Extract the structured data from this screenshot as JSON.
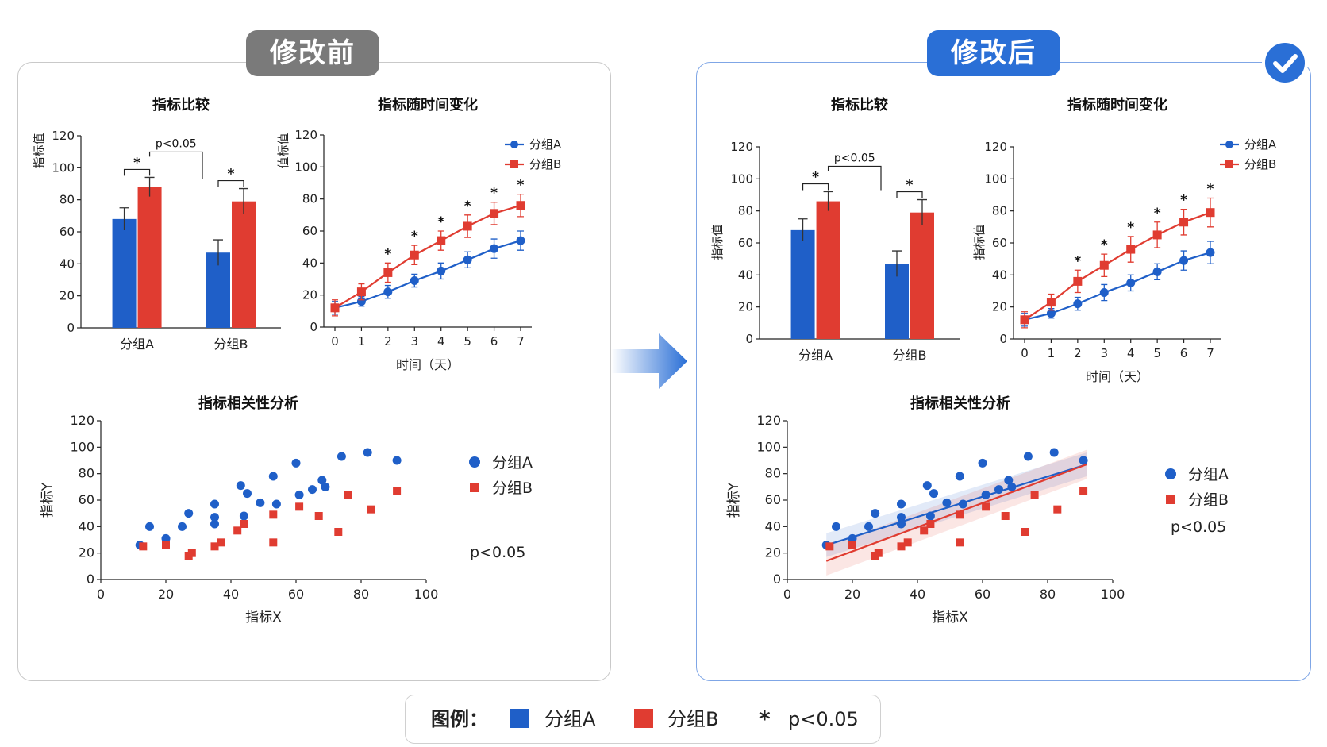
{
  "labels": {
    "before": "修改前",
    "after": "修改后"
  },
  "colors": {
    "groupA": "#1f5fc8",
    "groupB": "#e03c31",
    "tag_before": "#7a7a7a",
    "tag_after": "#2a6fd6"
  },
  "icons": {
    "check": "check-icon",
    "arrow": "arrow-right-icon"
  },
  "legend": {
    "title": "图例：",
    "groupA": "分组A",
    "groupB": "分组B",
    "star": "*",
    "sig": "p<0.05"
  },
  "chart_data": [
    {
      "id": "before-bar",
      "panel": "before",
      "type": "bar",
      "title": "指标比较",
      "ylabel": "指标值",
      "categories": [
        "分组A",
        "分组B"
      ],
      "series": [
        {
          "name": "分组A",
          "values": [
            68,
            47
          ],
          "err": [
            7,
            8
          ]
        },
        {
          "name": "分组B",
          "values": [
            88,
            79
          ],
          "err": [
            6,
            8
          ]
        }
      ],
      "ylim": [
        0,
        120
      ],
      "yticks": [
        0,
        20,
        40,
        60,
        80,
        100,
        120
      ],
      "annotations": {
        "star": "*",
        "bracket": "p<0.05"
      }
    },
    {
      "id": "before-line",
      "panel": "before",
      "type": "line",
      "title": "指标随时间变化",
      "ylabel": "值标值",
      "xlabel": "时间（天）",
      "x": [
        0,
        1,
        2,
        3,
        4,
        5,
        6,
        7
      ],
      "series": [
        {
          "name": "分组A",
          "values": [
            12,
            16,
            22,
            29,
            35,
            42,
            49,
            54
          ],
          "err": [
            4,
            3,
            4,
            4,
            5,
            5,
            6,
            6
          ]
        },
        {
          "name": "分组B",
          "values": [
            12,
            22,
            34,
            45,
            54,
            63,
            71,
            76
          ],
          "err": [
            5,
            5,
            6,
            6,
            6,
            7,
            7,
            7
          ]
        }
      ],
      "ylim": [
        0,
        120
      ],
      "yticks": [
        0,
        20,
        40,
        60,
        80,
        100,
        120
      ],
      "star_points": [
        2,
        3,
        4,
        5,
        6,
        7
      ],
      "star": "*"
    },
    {
      "id": "before-scatter",
      "panel": "before",
      "type": "scatter",
      "title": "指标相关性分析",
      "xlabel": "指标X",
      "ylabel": "指标Y",
      "xlim": [
        0,
        100
      ],
      "ylim": [
        0,
        120
      ],
      "xticks": [
        0,
        20,
        40,
        60,
        80,
        100
      ],
      "yticks": [
        0,
        20,
        40,
        60,
        80,
        100,
        120
      ],
      "series": [
        {
          "name": "分组A",
          "points": [
            [
              12,
              26
            ],
            [
              15,
              40
            ],
            [
              20,
              31
            ],
            [
              25,
              40
            ],
            [
              27,
              50
            ],
            [
              35,
              57
            ],
            [
              35,
              47
            ],
            [
              35,
              42
            ],
            [
              43,
              71
            ],
            [
              44,
              48
            ],
            [
              45,
              65
            ],
            [
              49,
              58
            ],
            [
              53,
              78
            ],
            [
              54,
              57
            ],
            [
              60,
              88
            ],
            [
              61,
              64
            ],
            [
              65,
              68
            ],
            [
              68,
              75
            ],
            [
              69,
              70
            ],
            [
              74,
              93
            ],
            [
              82,
              96
            ],
            [
              91,
              90
            ]
          ]
        },
        {
          "name": "分组B",
          "points": [
            [
              13,
              25
            ],
            [
              20,
              26
            ],
            [
              27,
              18
            ],
            [
              28,
              20
            ],
            [
              35,
              25
            ],
            [
              37,
              28
            ],
            [
              42,
              37
            ],
            [
              44,
              42
            ],
            [
              53,
              28
            ],
            [
              53,
              49
            ],
            [
              61,
              55
            ],
            [
              67,
              48
            ],
            [
              73,
              36
            ],
            [
              76,
              64
            ],
            [
              83,
              53
            ],
            [
              91,
              67
            ]
          ]
        }
      ],
      "annotation": "p<0.05"
    },
    {
      "id": "after-bar",
      "panel": "after",
      "type": "bar",
      "title": "指标比较",
      "ylabel": "指标值",
      "categories": [
        "分组A",
        "分组B"
      ],
      "series": [
        {
          "name": "分组A",
          "values": [
            68,
            47
          ],
          "err": [
            7,
            8
          ]
        },
        {
          "name": "分组B",
          "values": [
            86,
            79
          ],
          "err": [
            6,
            8
          ]
        }
      ],
      "ylim": [
        0,
        120
      ],
      "yticks": [
        0,
        20,
        40,
        60,
        80,
        100,
        120
      ],
      "annotations": {
        "star": "*",
        "bracket": "p<0.05"
      }
    },
    {
      "id": "after-line",
      "panel": "after",
      "type": "line",
      "title": "指标随时间变化",
      "ylabel": "指标值",
      "xlabel": "时间（天）",
      "x": [
        0,
        1,
        2,
        3,
        4,
        5,
        6,
        7
      ],
      "series": [
        {
          "name": "分组A",
          "values": [
            12,
            16,
            22,
            29,
            35,
            42,
            49,
            54
          ],
          "err": [
            4,
            3,
            4,
            5,
            5,
            5,
            6,
            7
          ]
        },
        {
          "name": "分组B",
          "values": [
            12,
            23,
            36,
            46,
            56,
            65,
            73,
            79
          ],
          "err": [
            5,
            5,
            7,
            7,
            8,
            8,
            8,
            9
          ]
        }
      ],
      "ylim": [
        0,
        120
      ],
      "yticks": [
        0,
        20,
        40,
        60,
        80,
        100,
        120
      ],
      "star_points": [
        2,
        3,
        4,
        5,
        6,
        7
      ],
      "star": "*"
    },
    {
      "id": "after-scatter",
      "panel": "after",
      "type": "scatter",
      "title": "指标相关性分析",
      "xlabel": "指标X",
      "ylabel": "指标Y",
      "xlim": [
        0,
        100
      ],
      "ylim": [
        0,
        120
      ],
      "xticks": [
        0,
        20,
        40,
        60,
        80,
        100
      ],
      "yticks": [
        0,
        20,
        40,
        60,
        80,
        100,
        120
      ],
      "series": [
        {
          "name": "分组A",
          "points": [
            [
              12,
              26
            ],
            [
              15,
              40
            ],
            [
              20,
              31
            ],
            [
              25,
              40
            ],
            [
              27,
              50
            ],
            [
              35,
              57
            ],
            [
              35,
              47
            ],
            [
              35,
              42
            ],
            [
              43,
              71
            ],
            [
              44,
              48
            ],
            [
              45,
              65
            ],
            [
              49,
              58
            ],
            [
              53,
              78
            ],
            [
              54,
              57
            ],
            [
              60,
              88
            ],
            [
              61,
              64
            ],
            [
              65,
              68
            ],
            [
              68,
              75
            ],
            [
              69,
              70
            ],
            [
              74,
              93
            ],
            [
              82,
              96
            ],
            [
              91,
              90
            ]
          ],
          "fit": [
            [
              12,
              26
            ],
            [
              92,
              87
            ]
          ]
        },
        {
          "name": "分组B",
          "points": [
            [
              13,
              25
            ],
            [
              20,
              26
            ],
            [
              27,
              18
            ],
            [
              28,
              20
            ],
            [
              35,
              25
            ],
            [
              37,
              28
            ],
            [
              42,
              37
            ],
            [
              44,
              42
            ],
            [
              53,
              28
            ],
            [
              53,
              49
            ],
            [
              61,
              55
            ],
            [
              67,
              48
            ],
            [
              73,
              36
            ],
            [
              76,
              64
            ],
            [
              83,
              53
            ],
            [
              91,
              67
            ]
          ],
          "fit": [
            [
              12,
              14
            ],
            [
              92,
              87
            ]
          ]
        }
      ],
      "annotation": "p<0.05"
    }
  ]
}
